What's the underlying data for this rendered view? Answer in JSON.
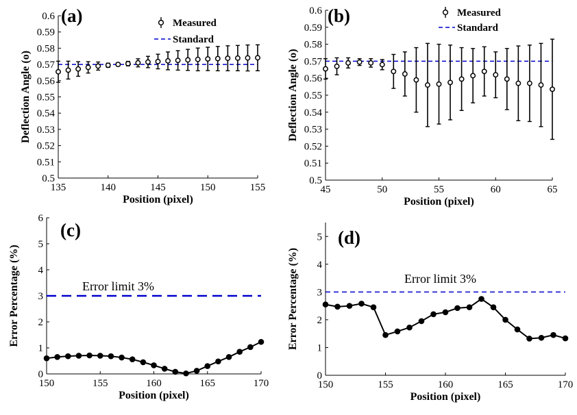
{
  "colors": {
    "standard_line": "#0000cc",
    "markers": "#000000",
    "axes": "#000000"
  },
  "chart_data": [
    {
      "type": "scatter",
      "panel_label": "(a)",
      "xlabel": "Position (pixel)",
      "ylabel": "Deflection Angle (o)",
      "xlim": [
        135,
        155
      ],
      "ylim": [
        0.5,
        0.6
      ],
      "xticks": [
        135,
        140,
        145,
        150,
        155
      ],
      "yticks": [
        0.5,
        0.51,
        0.52,
        0.53,
        0.54,
        0.55,
        0.56,
        0.57,
        0.58,
        0.59,
        0.6
      ],
      "ytick_labels": [
        "0.5",
        "0.51",
        "0.52",
        "0.53",
        "0.54",
        "0.55",
        "0.56",
        "0.57",
        "0.58",
        "0.59",
        "0.6"
      ],
      "legend": {
        "position": "top-right",
        "entries": [
          "Measured",
          "Standard"
        ]
      },
      "standard": 0.57,
      "series": [
        {
          "name": "Measured",
          "x": [
            135,
            136,
            137,
            138,
            139,
            140,
            141,
            142,
            143,
            144,
            145,
            146,
            147,
            148,
            149,
            150,
            151,
            152,
            153,
            154,
            155
          ],
          "y": [
            0.5655,
            0.5665,
            0.5672,
            0.5682,
            0.569,
            0.5695,
            0.57,
            0.5705,
            0.571,
            0.5715,
            0.5718,
            0.5722,
            0.5725,
            0.5728,
            0.5731,
            0.5734,
            0.5736,
            0.5738,
            0.5739,
            0.574,
            0.5741
          ],
          "err": [
            0.0065,
            0.0055,
            0.0045,
            0.0035,
            0.0025,
            0.0013,
            0.001,
            0.0014,
            0.0025,
            0.0035,
            0.0045,
            0.0055,
            0.006,
            0.0065,
            0.007,
            0.0072,
            0.0075,
            0.0077,
            0.0078,
            0.008,
            0.008
          ]
        }
      ]
    },
    {
      "type": "scatter",
      "panel_label": "(b)",
      "xlabel": "Position (pixel)",
      "ylabel": "Deflection Angle (o)",
      "xlim": [
        45,
        65
      ],
      "ylim": [
        0.5,
        0.6
      ],
      "xticks": [
        45,
        50,
        55,
        60,
        65
      ],
      "yticks": [
        0.5,
        0.51,
        0.52,
        0.53,
        0.54,
        0.55,
        0.56,
        0.57,
        0.58,
        0.59,
        0.6
      ],
      "ytick_labels": [
        "0.5",
        "0.51",
        "0.52",
        "0.53",
        "0.54",
        "0.55",
        "0.56",
        "0.57",
        "0.58",
        "0.59",
        "0.6"
      ],
      "legend": {
        "position": "top-right",
        "entries": [
          "Measured",
          "Standard"
        ]
      },
      "standard": 0.57,
      "series": [
        {
          "name": "Measured",
          "x": [
            45,
            46,
            47,
            48,
            49,
            50,
            51,
            52,
            53,
            54,
            55,
            56,
            57,
            58,
            59,
            60,
            61,
            62,
            63,
            64,
            65
          ],
          "y": [
            0.5655,
            0.567,
            0.569,
            0.5695,
            0.569,
            0.568,
            0.564,
            0.5625,
            0.559,
            0.556,
            0.5565,
            0.5575,
            0.5595,
            0.5615,
            0.564,
            0.562,
            0.5595,
            0.557,
            0.557,
            0.556,
            0.5535
          ],
          "err": [
            0.006,
            0.005,
            0.003,
            0.002,
            0.0025,
            0.003,
            0.01,
            0.013,
            0.019,
            0.0245,
            0.0235,
            0.022,
            0.0185,
            0.016,
            0.0145,
            0.0135,
            0.018,
            0.022,
            0.0225,
            0.0245,
            0.0295
          ]
        }
      ]
    },
    {
      "type": "line",
      "panel_label": "(c)",
      "xlabel": "Position (pixel)",
      "ylabel": "Error Percentage (%)",
      "xlim": [
        150,
        170
      ],
      "ylim": [
        0,
        6
      ],
      "xticks": [
        150,
        155,
        160,
        165,
        170
      ],
      "yticks": [
        0,
        1,
        2,
        3,
        4,
        5,
        6
      ],
      "ytick_labels": [
        "0",
        "1",
        "2",
        "3",
        "4",
        "5",
        "6"
      ],
      "limit": 3,
      "limit_label": "Error limit 3%",
      "series": [
        {
          "name": "",
          "x": [
            150,
            151,
            152,
            153,
            154,
            155,
            156,
            157,
            158,
            159,
            160,
            161,
            162,
            163,
            164,
            165,
            166,
            167,
            168,
            169,
            170
          ],
          "y": [
            0.6,
            0.65,
            0.68,
            0.7,
            0.71,
            0.7,
            0.68,
            0.63,
            0.56,
            0.45,
            0.33,
            0.2,
            0.08,
            0.02,
            0.12,
            0.3,
            0.48,
            0.65,
            0.85,
            1.03,
            1.23
          ]
        }
      ]
    },
    {
      "type": "line",
      "panel_label": "(d)",
      "xlabel": "Position (pixel)",
      "ylabel": "Error Percentage (%)",
      "xlim": [
        150,
        170
      ],
      "ylim": [
        0,
        5.5
      ],
      "xticks": [
        150,
        155,
        160,
        165,
        170
      ],
      "yticks": [
        0,
        1,
        2,
        3,
        4,
        5
      ],
      "ytick_labels": [
        "0",
        "1",
        "2",
        "3",
        "4",
        "5"
      ],
      "limit": 3,
      "limit_label": "Error limit 3%",
      "series": [
        {
          "name": "",
          "x": [
            150,
            151,
            152,
            153,
            154,
            155,
            156,
            157,
            158,
            159,
            160,
            161,
            162,
            163,
            164,
            165,
            166,
            167,
            168,
            169,
            170
          ],
          "y": [
            2.55,
            2.47,
            2.5,
            2.58,
            2.45,
            1.45,
            1.58,
            1.72,
            1.95,
            2.2,
            2.27,
            2.42,
            2.45,
            2.75,
            2.45,
            2.0,
            1.65,
            1.32,
            1.35,
            1.45,
            1.33
          ]
        }
      ]
    }
  ]
}
